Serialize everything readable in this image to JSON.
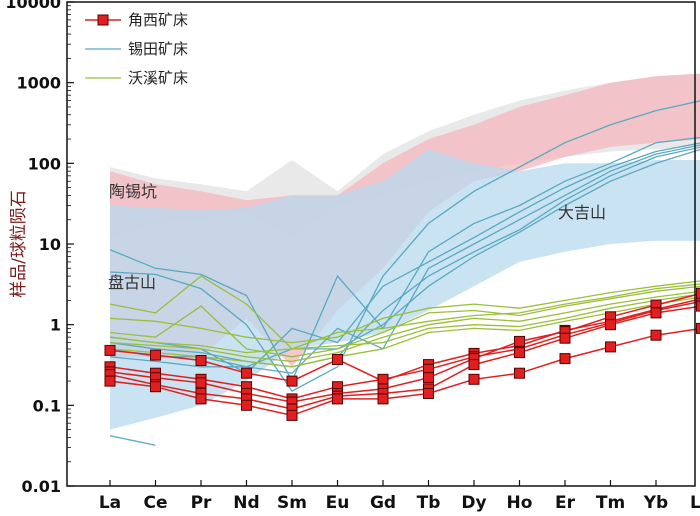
{
  "chart_data": {
    "type": "line",
    "ylabel": "样品/球粒陨石",
    "yscale": "log",
    "ylim": [
      0.01,
      10000
    ],
    "yticks": [
      "0.01",
      "0.1",
      "1",
      "10",
      "100",
      "1000",
      "10000"
    ],
    "categories": [
      "La",
      "Ce",
      "Pr",
      "Nd",
      "Sm",
      "Eu",
      "Gd",
      "Tb",
      "Dy",
      "Ho",
      "Er",
      "Tm",
      "Yb",
      "Lu"
    ],
    "legend": [
      {
        "label": "角西矿床",
        "color": "#e02020",
        "marker": "square"
      },
      {
        "label": "锡田矿床",
        "color": "#5aa9c0",
        "marker": "none"
      },
      {
        "label": "沃溪矿床",
        "color": "#9bbf3a",
        "marker": "none"
      }
    ],
    "region_labels": [
      {
        "text": "陶锡坑",
        "name": "region-label-taoxikeng"
      },
      {
        "text": "盘古山",
        "name": "region-label-pangushan"
      },
      {
        "text": "大吉山",
        "name": "region-label-dajishan"
      }
    ],
    "colors": {
      "jiaoxi": "#e02020",
      "xitian": "#5aa9c0",
      "woxi": "#9bbf3a",
      "field_pink": "#f4b6be",
      "field_blue": "#b7d9ef",
      "field_grey": "#e2e2e2"
    },
    "fields": [
      {
        "name": "taoxikeng-field",
        "color": "#e2e2e2",
        "upper": [
          90,
          65,
          55,
          45,
          110,
          45,
          130,
          250,
          400,
          600,
          800,
          1000,
          1200,
          1300
        ],
        "lower": [
          12,
          18,
          20,
          25,
          12,
          30,
          40,
          60,
          80,
          100,
          120,
          140,
          150,
          160
        ]
      },
      {
        "name": "pangushan-field",
        "color": "#f4b6be",
        "upper": [
          80,
          55,
          45,
          35,
          40,
          40,
          100,
          200,
          300,
          500,
          700,
          1000,
          1200,
          1300
        ],
        "lower": [
          0.4,
          0.4,
          0.4,
          1.2,
          0.3,
          1.5,
          5,
          25,
          60,
          80,
          120,
          160,
          180,
          200
        ]
      },
      {
        "name": "dajishan-field",
        "color": "#b7d9ef",
        "upper": [
          30,
          28,
          26,
          28,
          40,
          40,
          60,
          150,
          100,
          80,
          100,
          100,
          110,
          110
        ],
        "lower": [
          0.05,
          0.07,
          0.1,
          0.2,
          0.5,
          0.6,
          0.8,
          1.5,
          3,
          6,
          8,
          10,
          11,
          11
        ]
      }
    ],
    "series": [
      {
        "name": "角西矿床",
        "color": "#e02020",
        "values": [
          0.48,
          0.42,
          0.36,
          0.25,
          0.2,
          0.37,
          0.2,
          0.32,
          0.44,
          0.55,
          0.85,
          1.1,
          1.55,
          2.1
        ]
      },
      {
        "name": "角西矿床",
        "color": "#e02020",
        "values": [
          0.3,
          0.25,
          0.21,
          0.17,
          0.12,
          0.17,
          0.21,
          0.28,
          0.4,
          0.5,
          0.75,
          1.05,
          1.5,
          1.95
        ]
      },
      {
        "name": "角西矿床",
        "color": "#e02020",
        "values": [
          0.26,
          0.22,
          0.19,
          0.14,
          0.11,
          0.14,
          0.16,
          0.22,
          0.38,
          0.62,
          0.82,
          1.25,
          1.75,
          2.45
        ]
      },
      {
        "name": "角西矿床",
        "color": "#e02020",
        "values": [
          0.24,
          0.18,
          0.14,
          0.12,
          0.09,
          0.13,
          0.14,
          0.16,
          0.32,
          0.45,
          0.68,
          1.0,
          1.4,
          1.7
        ]
      },
      {
        "name": "角西矿床",
        "color": "#e02020",
        "values": [
          0.2,
          0.17,
          0.12,
          0.1,
          0.075,
          0.12,
          0.12,
          0.14,
          0.21,
          0.25,
          0.38,
          0.53,
          0.74,
          0.9
        ]
      }
    ],
    "xitian_lines": [
      [
        8.5,
        5,
        4.2,
        2.3,
        0.2,
        4.0,
        0.9,
        8,
        18,
        30,
        60,
        100,
        180,
        210
      ],
      [
        4.5,
        4.2,
        2.8,
        1.0,
        0.15,
        0.3,
        4,
        18,
        45,
        90,
        180,
        300,
        450,
        600
      ],
      [
        0.7,
        0.6,
        0.5,
        0.25,
        0.9,
        0.6,
        3,
        6,
        12,
        25,
        50,
        90,
        140,
        180
      ],
      [
        0.5,
        0.4,
        0.4,
        0.3,
        0.25,
        0.9,
        0.5,
        5,
        10,
        20,
        40,
        80,
        130,
        170
      ],
      [
        0.6,
        0.5,
        0.45,
        0.35,
        0.3,
        0.4,
        1.5,
        4,
        8,
        15,
        35,
        70,
        120,
        160
      ],
      [
        0.4,
        0.35,
        0.3,
        0.3,
        0.5,
        0.5,
        1.0,
        3,
        7,
        14,
        30,
        60,
        100,
        150
      ]
    ],
    "woxi_lines": [
      [
        1.8,
        1.4,
        4.0,
        1.8,
        0.5,
        0.8,
        0.9,
        1.1,
        1.3,
        1.4,
        1.8,
        2.2,
        2.8,
        3.2
      ],
      [
        1.2,
        1.1,
        0.9,
        0.7,
        0.6,
        0.7,
        1.2,
        1.6,
        1.8,
        1.6,
        2.0,
        2.5,
        3.0,
        3.5
      ],
      [
        0.8,
        0.7,
        1.7,
        0.5,
        0.4,
        0.5,
        0.8,
        1.4,
        1.5,
        1.3,
        1.7,
        2.1,
        2.6,
        3.0
      ],
      [
        0.6,
        0.55,
        0.5,
        0.4,
        0.35,
        0.45,
        0.7,
        1.0,
        1.2,
        1.1,
        1.4,
        1.8,
        2.2,
        2.6
      ],
      [
        0.7,
        0.6,
        0.55,
        0.45,
        0.5,
        0.55,
        0.6,
        0.9,
        1.0,
        0.95,
        1.2,
        1.6,
        2.0,
        2.4
      ],
      [
        0.5,
        0.45,
        0.4,
        0.35,
        0.3,
        0.4,
        0.5,
        0.8,
        0.9,
        0.85,
        1.1,
        1.4,
        1.8,
        2.2
      ]
    ],
    "extra_segments": [
      {
        "color": "#5aa9c0",
        "category_start": 0,
        "values": [
          0.042,
          0.032
        ]
      }
    ]
  }
}
